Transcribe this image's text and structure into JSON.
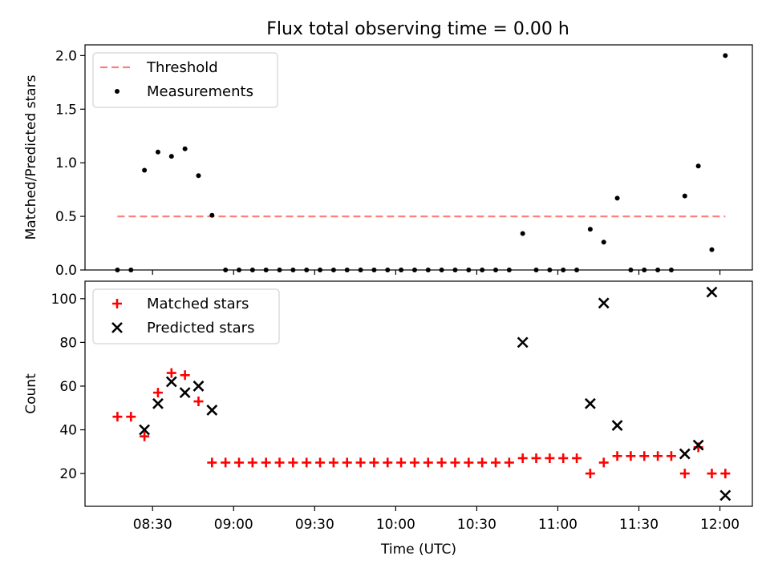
{
  "title": "Flux total observing time = 0.00 h",
  "chart_data": [
    {
      "type": "scatter",
      "ylabel": "Matched/Predicted stars",
      "xlabel": "",
      "ylim": [
        0,
        2.1
      ],
      "yticks": [
        0.0,
        0.5,
        1.0,
        1.5,
        2.0
      ],
      "ytick_labels": [
        "0.0",
        "0.5",
        "1.0",
        "1.5",
        "2.0"
      ],
      "legend_position": "top-left",
      "threshold": {
        "name": "Threshold",
        "value": 0.5,
        "color": "#ff7f7f",
        "style": "dashed",
        "x_start": "08:17",
        "x_end": "12:02"
      },
      "series": [
        {
          "name": "Measurements",
          "color": "#000000",
          "marker": "dot",
          "x": [
            "08:17",
            "08:22",
            "08:27",
            "08:32",
            "08:37",
            "08:42",
            "08:47",
            "08:52",
            "08:57",
            "09:02",
            "09:07",
            "09:12",
            "09:17",
            "09:22",
            "09:27",
            "09:32",
            "09:37",
            "09:42",
            "09:47",
            "09:52",
            "09:57",
            "10:02",
            "10:07",
            "10:12",
            "10:17",
            "10:22",
            "10:27",
            "10:32",
            "10:37",
            "10:42",
            "10:47",
            "10:52",
            "10:57",
            "11:02",
            "11:07",
            "11:12",
            "11:17",
            "11:22",
            "11:27",
            "11:32",
            "11:37",
            "11:42",
            "11:47",
            "11:52",
            "11:57",
            "12:02"
          ],
          "y": [
            0,
            0,
            0.93,
            1.1,
            1.06,
            1.13,
            0.88,
            0.51,
            0,
            0,
            0,
            0,
            0,
            0,
            0,
            0,
            0,
            0,
            0,
            0,
            0,
            0,
            0,
            0,
            0,
            0,
            0,
            0,
            0,
            0,
            0.34,
            0,
            0,
            0,
            0,
            0.38,
            0.26,
            0.67,
            0,
            0,
            0,
            0,
            0.69,
            0.97,
            0.19,
            2.0
          ]
        }
      ]
    },
    {
      "type": "scatter",
      "ylabel": "Count",
      "xlabel": "Time (UTC)",
      "ylim": [
        5,
        108
      ],
      "yticks": [
        20,
        40,
        60,
        80,
        100
      ],
      "ytick_labels": [
        "20",
        "40",
        "60",
        "80",
        "100"
      ],
      "x_range": [
        "08:05",
        "12:12"
      ],
      "xticks": [
        "08:30",
        "09:00",
        "09:30",
        "10:00",
        "10:30",
        "11:00",
        "11:30",
        "12:00"
      ],
      "legend_position": "top-left",
      "series": [
        {
          "name": "Matched stars",
          "color": "#ff0000",
          "marker": "plus",
          "x": [
            "08:17",
            "08:22",
            "08:27",
            "08:32",
            "08:37",
            "08:42",
            "08:47",
            "08:52",
            "08:57",
            "09:02",
            "09:07",
            "09:12",
            "09:17",
            "09:22",
            "09:27",
            "09:32",
            "09:37",
            "09:42",
            "09:47",
            "09:52",
            "09:57",
            "10:02",
            "10:07",
            "10:12",
            "10:17",
            "10:22",
            "10:27",
            "10:32",
            "10:37",
            "10:42",
            "10:47",
            "10:52",
            "10:57",
            "11:02",
            "11:07",
            "11:12",
            "11:17",
            "11:22",
            "11:27",
            "11:32",
            "11:37",
            "11:42",
            "11:47",
            "11:52",
            "11:57",
            "12:02"
          ],
          "y": [
            46,
            46,
            37,
            57,
            66,
            65,
            53,
            25,
            25,
            25,
            25,
            25,
            25,
            25,
            25,
            25,
            25,
            25,
            25,
            25,
            25,
            25,
            25,
            25,
            25,
            25,
            25,
            25,
            25,
            25,
            27,
            27,
            27,
            27,
            27,
            20,
            25,
            28,
            28,
            28,
            28,
            28,
            20,
            32,
            20,
            20
          ]
        },
        {
          "name": "Predicted stars",
          "color": "#000000",
          "marker": "x",
          "x": [
            "08:27",
            "08:32",
            "08:37",
            "08:42",
            "08:47",
            "08:52",
            "10:47",
            "11:12",
            "11:17",
            "11:22",
            "11:47",
            "11:52",
            "11:57",
            "12:02"
          ],
          "y": [
            40,
            52,
            62,
            57,
            60,
            49,
            80,
            52,
            98,
            42,
            29,
            33,
            103,
            10
          ]
        }
      ]
    }
  ]
}
